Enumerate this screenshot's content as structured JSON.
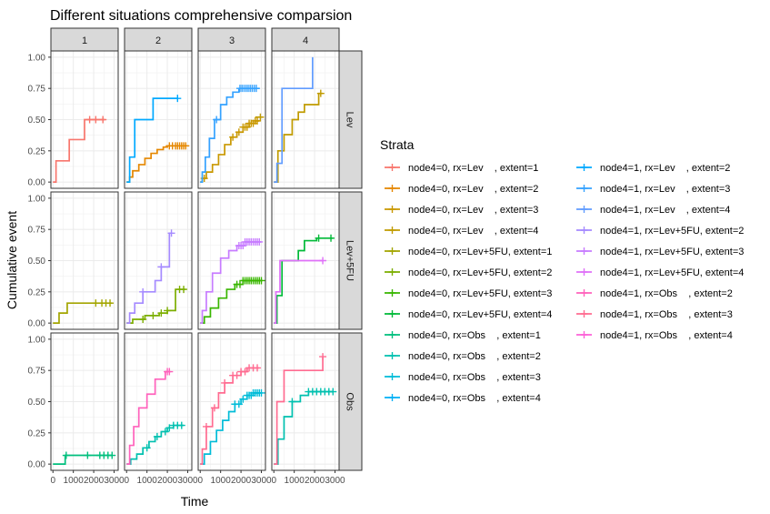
{
  "chart_data": {
    "type": "line",
    "title": "Different situations comprehensive comparsion",
    "xlabel": "Time",
    "ylabel": "Cumulative event",
    "xlim": [
      -100,
      3200
    ],
    "ylim": [
      -0.05,
      1.05
    ],
    "x_ticks": [
      "0",
      "1000",
      "2000",
      "3000"
    ],
    "y_ticks": [
      "0.00",
      "0.25",
      "0.50",
      "0.75",
      "1.00"
    ],
    "columns": [
      "1",
      "2",
      "3",
      "4"
    ],
    "rows": [
      "Lev",
      "Lev+5FU",
      "Obs"
    ],
    "legend": {
      "title": "Strata",
      "placement": "right",
      "entries": [
        {
          "label": "node4=0, rx=Lev    , extent=1",
          "color": "#F8766D"
        },
        {
          "label": "node4=0, rx=Lev    , extent=2",
          "color": "#E58700"
        },
        {
          "label": "node4=0, rx=Lev    , extent=3",
          "color": "#C99800"
        },
        {
          "label": "node4=0, rx=Lev    , extent=4",
          "color": "#C09B00"
        },
        {
          "label": "node4=0, rx=Lev+5FU, extent=1",
          "color": "#A3A500"
        },
        {
          "label": "node4=0, rx=Lev+5FU, extent=2",
          "color": "#7CAE00"
        },
        {
          "label": "node4=0, rx=Lev+5FU, extent=3",
          "color": "#39B600"
        },
        {
          "label": "node4=0, rx=Lev+5FU, extent=4",
          "color": "#00BA38"
        },
        {
          "label": "node4=0, rx=Obs    , extent=1",
          "color": "#00BF7D"
        },
        {
          "label": "node4=0, rx=Obs    , extent=2",
          "color": "#00C0AF"
        },
        {
          "label": "node4=0, rx=Obs    , extent=3",
          "color": "#00BCD8"
        },
        {
          "label": "node4=0, rx=Obs    , extent=4",
          "color": "#00B0F6"
        },
        {
          "label": "node4=1, rx=Lev    , extent=2",
          "color": "#00A9FF"
        },
        {
          "label": "node4=1, rx=Lev    , extent=3",
          "color": "#35A2FF"
        },
        {
          "label": "node4=1, rx=Lev    , extent=4",
          "color": "#619CFF"
        },
        {
          "label": "node4=1, rx=Lev+5FU, extent=2",
          "color": "#A58AFF"
        },
        {
          "label": "node4=1, rx=Lev+5FU, extent=3",
          "color": "#C77CFF"
        },
        {
          "label": "node4=1, rx=Lev+5FU, extent=4",
          "color": "#DF70F8"
        },
        {
          "label": "node4=1, rx=Obs    , extent=2",
          "color": "#FF62BC"
        },
        {
          "label": "node4=1, rx=Obs    , extent=3",
          "color": "#FF6C91"
        },
        {
          "label": "node4=1, rx=Obs    , extent=4",
          "color": "#FB61D7"
        }
      ]
    },
    "series": [
      {
        "panel": [
          "Lev",
          "1"
        ],
        "color": "#F8766D",
        "steps": [
          [
            0,
            0
          ],
          [
            150,
            0.17
          ],
          [
            800,
            0.34
          ],
          [
            1550,
            0.5
          ]
        ],
        "end": 2550,
        "censor": [
          1800,
          2100,
          2450
        ]
      },
      {
        "panel": [
          "Lev",
          "2"
        ],
        "color": "#E58700",
        "steps": [
          [
            0,
            0
          ],
          [
            150,
            0.04
          ],
          [
            300,
            0.09
          ],
          [
            600,
            0.14
          ],
          [
            900,
            0.19
          ],
          [
            1200,
            0.23
          ],
          [
            1500,
            0.26
          ],
          [
            1800,
            0.28
          ],
          [
            2000,
            0.29
          ]
        ],
        "end": 2900,
        "censor": [
          2100,
          2250,
          2400,
          2500,
          2600,
          2700,
          2800,
          2900
        ]
      },
      {
        "panel": [
          "Lev",
          "2"
        ],
        "color": "#00A9FF",
        "steps": [
          [
            0,
            0
          ],
          [
            150,
            0.2
          ],
          [
            400,
            0.5
          ],
          [
            1300,
            0.67
          ]
        ],
        "end": 2500,
        "censor": [
          2500
        ]
      },
      {
        "panel": [
          "Lev",
          "3"
        ],
        "color": "#C99800",
        "steps": [
          [
            0,
            0
          ],
          [
            100,
            0.03
          ],
          [
            300,
            0.08
          ],
          [
            600,
            0.14
          ],
          [
            900,
            0.22
          ],
          [
            1200,
            0.3
          ],
          [
            1500,
            0.36
          ],
          [
            1800,
            0.4
          ],
          [
            2100,
            0.44
          ],
          [
            2400,
            0.47
          ],
          [
            2700,
            0.49
          ]
        ],
        "end": 2900,
        "censor": [
          200,
          1600,
          1900,
          2100,
          2200,
          2300,
          2400,
          2500,
          2600,
          2700,
          2800
        ]
      },
      {
        "panel": [
          "Lev",
          "3"
        ],
        "color": "#C09B00",
        "steps": [
          [
            2700,
            0.52
          ]
        ],
        "end": 3000,
        "censor": [
          2950
        ]
      },
      {
        "panel": [
          "Lev",
          "3"
        ],
        "color": "#35A2FF",
        "steps": [
          [
            0,
            0
          ],
          [
            100,
            0.08
          ],
          [
            250,
            0.2
          ],
          [
            450,
            0.35
          ],
          [
            700,
            0.5
          ],
          [
            1000,
            0.62
          ],
          [
            1300,
            0.68
          ],
          [
            1600,
            0.72
          ],
          [
            1900,
            0.75
          ]
        ],
        "end": 2900,
        "censor": [
          800,
          1950,
          2050,
          2150,
          2250,
          2350,
          2450,
          2550,
          2650,
          2750
        ]
      },
      {
        "panel": [
          "Lev",
          "4"
        ],
        "color": "#C09B00",
        "steps": [
          [
            0,
            0
          ],
          [
            200,
            0.25
          ],
          [
            500,
            0.38
          ],
          [
            900,
            0.5
          ],
          [
            1200,
            0.56
          ],
          [
            1500,
            0.62
          ],
          [
            2200,
            0.71
          ]
        ],
        "end": 2400,
        "censor": [
          2300
        ]
      },
      {
        "panel": [
          "Lev",
          "4"
        ],
        "color": "#619CFF",
        "steps": [
          [
            0,
            0
          ],
          [
            150,
            0.15
          ],
          [
            400,
            0.75
          ],
          [
            1900,
            1.0
          ]
        ],
        "end": 1900,
        "censor": []
      },
      {
        "panel": [
          "Lev+5FU",
          "1"
        ],
        "color": "#A3A500",
        "steps": [
          [
            0,
            0
          ],
          [
            300,
            0.08
          ],
          [
            700,
            0.16
          ]
        ],
        "end": 2900,
        "censor": [
          2100,
          2400,
          2600,
          2800
        ]
      },
      {
        "panel": [
          "Lev+5FU",
          "2"
        ],
        "color": "#7CAE00",
        "steps": [
          [
            0,
            0
          ],
          [
            300,
            0.03
          ],
          [
            900,
            0.06
          ],
          [
            1600,
            0.08
          ],
          [
            2000,
            0.1
          ],
          [
            2400,
            0.27
          ]
        ],
        "end": 2900,
        "censor": [
          800,
          1300,
          1700,
          2000,
          2600,
          2800
        ]
      },
      {
        "panel": [
          "Lev+5FU",
          "2"
        ],
        "color": "#A58AFF",
        "steps": [
          [
            0,
            0
          ],
          [
            150,
            0.08
          ],
          [
            400,
            0.16
          ],
          [
            800,
            0.25
          ],
          [
            1400,
            0.34
          ],
          [
            1700,
            0.45
          ],
          [
            2100,
            0.72
          ]
        ],
        "end": 2200,
        "censor": [
          800,
          1700,
          2200
        ]
      },
      {
        "panel": [
          "Lev+5FU",
          "3"
        ],
        "color": "#39B600",
        "steps": [
          [
            0,
            0
          ],
          [
            200,
            0.05
          ],
          [
            500,
            0.12
          ],
          [
            900,
            0.2
          ],
          [
            1300,
            0.27
          ],
          [
            1700,
            0.31
          ],
          [
            2100,
            0.34
          ]
        ],
        "end": 3000,
        "censor": [
          1800,
          1950,
          2100,
          2200,
          2300,
          2400,
          2500,
          2600,
          2700,
          2800,
          2900,
          3000
        ]
      },
      {
        "panel": [
          "Lev+5FU",
          "3"
        ],
        "color": "#C77CFF",
        "steps": [
          [
            0,
            0
          ],
          [
            100,
            0.1
          ],
          [
            300,
            0.25
          ],
          [
            600,
            0.4
          ],
          [
            1000,
            0.52
          ],
          [
            1400,
            0.58
          ],
          [
            1800,
            0.62
          ],
          [
            2200,
            0.65
          ]
        ],
        "end": 3000,
        "censor": [
          1900,
          2000,
          2100,
          2200,
          2300,
          2400,
          2500,
          2600,
          2700,
          2800,
          2900
        ]
      },
      {
        "panel": [
          "Lev+5FU",
          "4"
        ],
        "color": "#00BA38",
        "steps": [
          [
            0,
            0
          ],
          [
            150,
            0.22
          ],
          [
            400,
            0.5
          ],
          [
            1200,
            0.58
          ],
          [
            1500,
            0.66
          ],
          [
            2100,
            0.68
          ]
        ],
        "end": 2900,
        "censor": [
          2200,
          2800
        ]
      },
      {
        "panel": [
          "Lev+5FU",
          "4"
        ],
        "color": "#DF70F8",
        "steps": [
          [
            0,
            0
          ],
          [
            100,
            0.25
          ],
          [
            300,
            0.5
          ]
        ],
        "end": 2400,
        "censor": [
          2400
        ]
      },
      {
        "panel": [
          "Obs",
          "1"
        ],
        "color": "#00BF7D",
        "steps": [
          [
            0,
            0
          ],
          [
            600,
            0.07
          ]
        ],
        "end": 2900,
        "censor": [
          650,
          1700,
          2300,
          2500,
          2700,
          2900
        ]
      },
      {
        "panel": [
          "Obs",
          "2"
        ],
        "color": "#00C0AF",
        "steps": [
          [
            0,
            0
          ],
          [
            200,
            0.04
          ],
          [
            500,
            0.08
          ],
          [
            800,
            0.13
          ],
          [
            1100,
            0.18
          ],
          [
            1400,
            0.22
          ],
          [
            1700,
            0.26
          ],
          [
            2000,
            0.29
          ],
          [
            2300,
            0.31
          ]
        ],
        "end": 2800,
        "censor": [
          1000,
          1500,
          1900,
          2100,
          2300,
          2500,
          2700
        ]
      },
      {
        "panel": [
          "Obs",
          "2"
        ],
        "color": "#FF62BC",
        "steps": [
          [
            0,
            0
          ],
          [
            150,
            0.15
          ],
          [
            350,
            0.3
          ],
          [
            600,
            0.45
          ],
          [
            1000,
            0.56
          ],
          [
            1400,
            0.68
          ],
          [
            1900,
            0.74
          ]
        ],
        "end": 2100,
        "censor": [
          2000,
          2100
        ]
      },
      {
        "panel": [
          "Obs",
          "3"
        ],
        "color": "#00BCD8",
        "steps": [
          [
            0,
            0
          ],
          [
            200,
            0.08
          ],
          [
            500,
            0.18
          ],
          [
            800,
            0.27
          ],
          [
            1100,
            0.35
          ],
          [
            1400,
            0.42
          ],
          [
            1700,
            0.48
          ],
          [
            2000,
            0.52
          ],
          [
            2300,
            0.55
          ],
          [
            2600,
            0.57
          ]
        ],
        "end": 3000,
        "censor": [
          1700,
          1900,
          2100,
          2300,
          2400,
          2500,
          2600,
          2700,
          2800,
          2900,
          3000
        ]
      },
      {
        "panel": [
          "Obs",
          "3"
        ],
        "color": "#FF6C91",
        "steps": [
          [
            0,
            0
          ],
          [
            100,
            0.12
          ],
          [
            300,
            0.3
          ],
          [
            600,
            0.45
          ],
          [
            900,
            0.57
          ],
          [
            1200,
            0.65
          ],
          [
            1600,
            0.71
          ],
          [
            2000,
            0.74
          ],
          [
            2300,
            0.77
          ]
        ],
        "end": 2900,
        "censor": [
          300,
          700,
          1200,
          1600,
          1800,
          2000,
          2200,
          2400,
          2600,
          2800
        ]
      },
      {
        "panel": [
          "Obs",
          "4"
        ],
        "color": "#00C0AF",
        "steps": [
          [
            0,
            0
          ],
          [
            200,
            0.2
          ],
          [
            500,
            0.38
          ],
          [
            900,
            0.5
          ],
          [
            1300,
            0.55
          ],
          [
            1700,
            0.58
          ]
        ],
        "end": 2900,
        "censor": [
          900,
          1700,
          1900,
          2100,
          2300,
          2500,
          2700,
          2900
        ]
      },
      {
        "panel": [
          "Obs",
          "4"
        ],
        "color": "#FF6C91",
        "steps": [
          [
            0,
            0
          ],
          [
            150,
            0.5
          ],
          [
            500,
            0.75
          ],
          [
            2400,
            0.86
          ]
        ],
        "end": 2400,
        "censor": [
          2400
        ]
      }
    ]
  }
}
